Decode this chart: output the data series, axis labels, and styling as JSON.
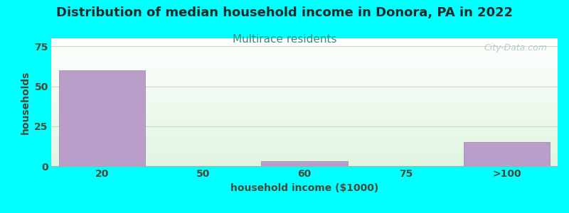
{
  "title": "Distribution of median household income in Donora, PA in 2022",
  "subtitle": "Multirace residents",
  "xlabel": "household income ($1000)",
  "ylabel": "households",
  "title_fontsize": 13,
  "subtitle_fontsize": 11,
  "label_fontsize": 10,
  "tick_fontsize": 10,
  "background_color": "#00FFFF",
  "bar_color": "#b89ec8",
  "bar_edgecolor": "#9880b0",
  "categories": [
    "20",
    "50",
    "60",
    "75",
    ">100"
  ],
  "values": [
    60,
    0,
    3,
    0,
    15
  ],
  "yticks": [
    0,
    25,
    50,
    75
  ],
  "ylim": [
    0,
    80
  ],
  "watermark": "City-Data.com",
  "title_color": "#1a2a2a",
  "subtitle_color": "#3a8a7a",
  "axis_label_color": "#4a4a3a",
  "tick_color": "#4a4a3a",
  "grid_color": "#c8ddb8",
  "spine_color": "#aaaaaa"
}
